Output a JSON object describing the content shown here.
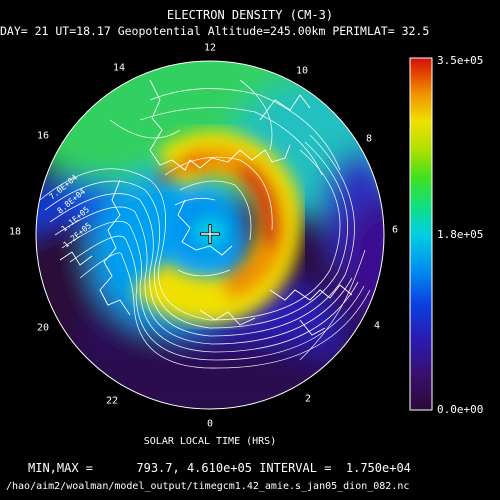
{
  "plot": {
    "title": "ELECTRON DENSITY (CM-3)",
    "subtitle": "DAY= 21 UT=18.17 Geopotential Altitude=245.00km PERIMLAT= 32.5",
    "xlabel": "SOLAR LOCAL TIME (HRS)",
    "hours": [
      "12",
      "14",
      "10",
      "16",
      "8",
      "18",
      "6",
      "20",
      "4",
      "22",
      "2",
      "0"
    ],
    "stats": "MIN,MAX =      793.7, 4.610e+05 INTERVAL =  1.750e+04",
    "file_path": "/hao/aim2/woalman/model_output/timegcm1.42_amie.s_jan05_dion_082.nc"
  },
  "colorbar": {
    "max_label": "3.5e+05",
    "mid_label": "1.8e+05",
    "min_label": "0.0e+00",
    "max": 350000,
    "min": 0,
    "colors": [
      "#2a0a38",
      "#3a0f6e",
      "#2a1bb0",
      "#0a3fe0",
      "#0090f0",
      "#00d0e0",
      "#10e080",
      "#40e020",
      "#b0e000",
      "#f0e000",
      "#f09000",
      "#e04000",
      "#d01010"
    ]
  },
  "contour_labels": [
    "7.0E+04",
    "8.8E+04",
    "1.1E+05",
    "1.2E+05"
  ],
  "colors": {
    "background": "#000000",
    "text": "#ffffff",
    "contour": "#ffffff"
  }
}
